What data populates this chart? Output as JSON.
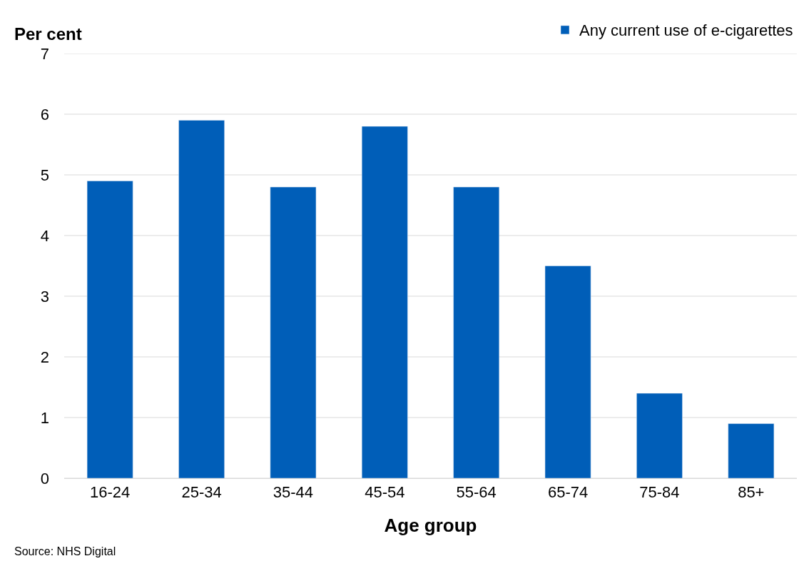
{
  "chart_data": {
    "type": "bar",
    "ylabel": "Per cent",
    "xlabel": "Age group",
    "categories": [
      "16-24",
      "25-34",
      "35-44",
      "45-54",
      "55-64",
      "65-74",
      "75-84",
      "85+"
    ],
    "series": [
      {
        "name": "Any current use of e-cigarettes",
        "color": "#005eb8",
        "values": [
          4.9,
          5.9,
          4.8,
          5.8,
          4.8,
          3.5,
          1.4,
          0.9
        ]
      }
    ],
    "ylim": [
      0,
      7
    ],
    "yticks": [
      0,
      1,
      2,
      3,
      4,
      5,
      6,
      7
    ],
    "grid": "y",
    "legend": "top right",
    "annotations": [
      "Source: NHS Digital"
    ]
  }
}
